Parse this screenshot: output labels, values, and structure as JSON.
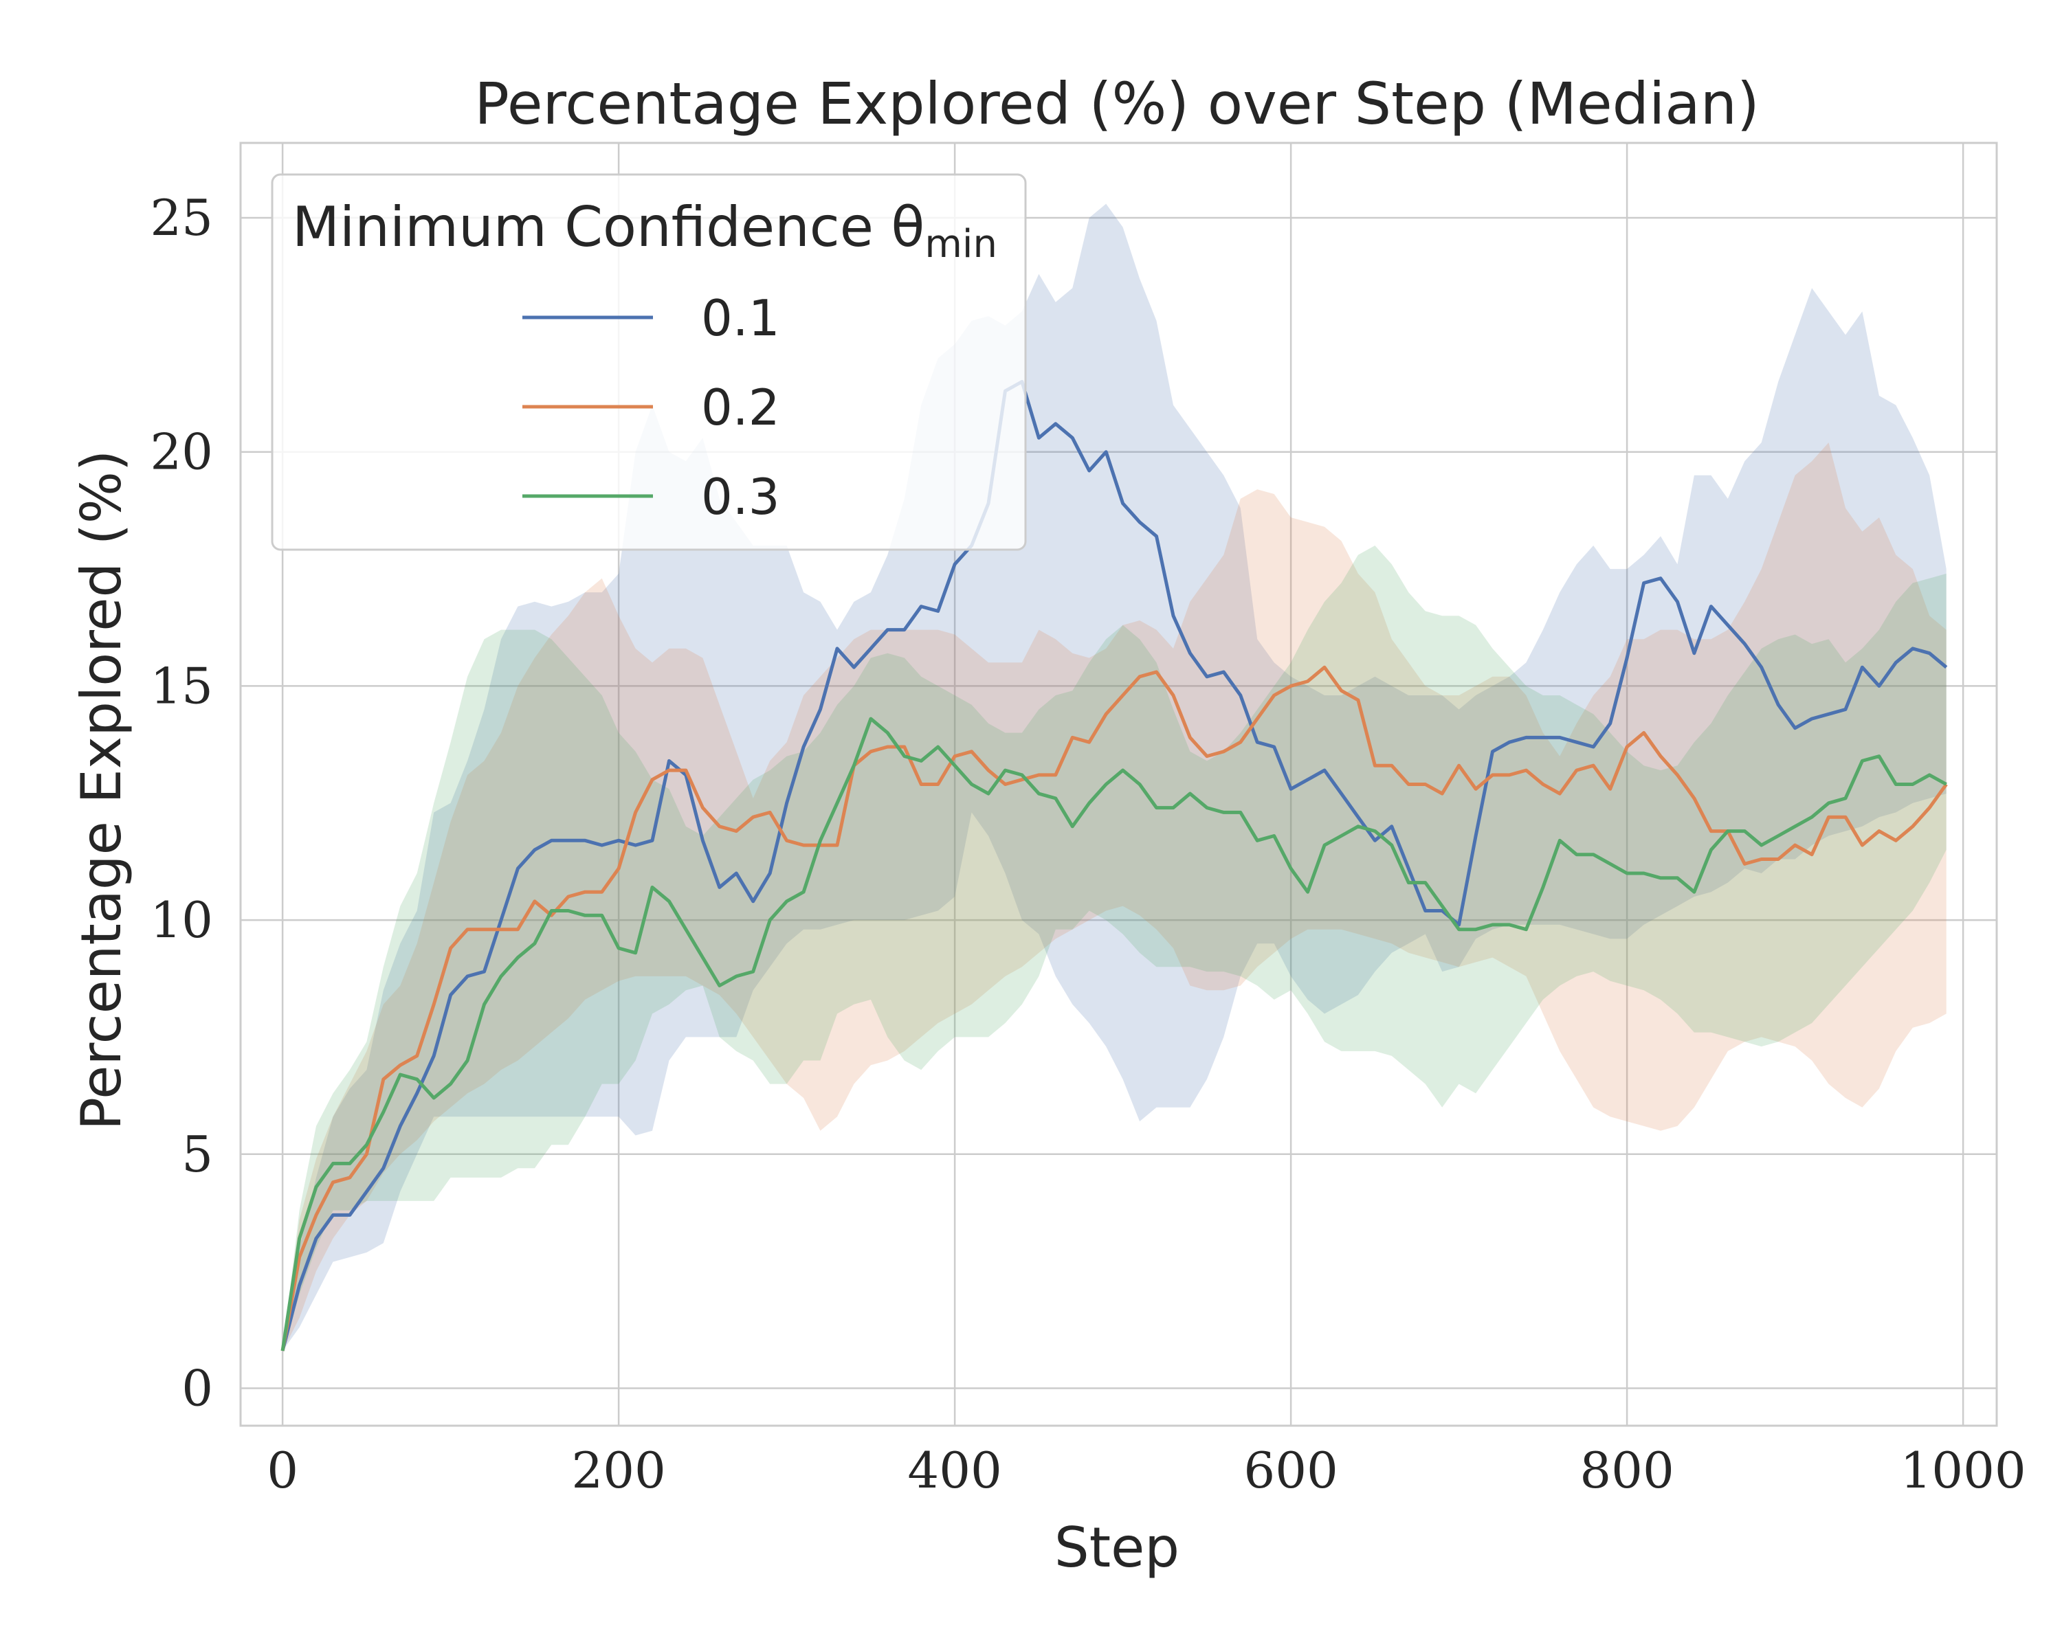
{
  "chart_data": {
    "type": "line",
    "title": "Percentage Explored (%) over Step (Median)",
    "xlabel": "Step",
    "ylabel": "Percentage Explored (%)",
    "xlim": [
      -25,
      1020
    ],
    "ylim": [
      -0.8,
      26.6
    ],
    "xticks": [
      0,
      200,
      400,
      600,
      800,
      1000
    ],
    "yticks": [
      0,
      5,
      10,
      15,
      20,
      25
    ],
    "grid": true,
    "legend": {
      "title": "Minimum Confidence θ",
      "title_subscript": "min",
      "placement": "top-left"
    },
    "series": [
      {
        "name": "0.1",
        "color": "#4c72b0",
        "x": [
          0,
          10,
          20,
          30,
          40,
          50,
          60,
          70,
          80,
          90,
          100,
          110,
          120,
          130,
          140,
          150,
          160,
          170,
          180,
          190,
          200,
          210,
          220,
          230,
          240,
          250,
          260,
          270,
          280,
          290,
          300,
          310,
          320,
          330,
          340,
          350,
          360,
          370,
          380,
          390,
          400,
          410,
          420,
          430,
          440,
          450,
          460,
          470,
          480,
          490,
          500,
          510,
          520,
          530,
          540,
          550,
          560,
          570,
          580,
          590,
          600,
          610,
          620,
          630,
          640,
          650,
          660,
          670,
          680,
          690,
          700,
          710,
          720,
          730,
          740,
          750,
          760,
          770,
          780,
          790,
          800,
          810,
          820,
          830,
          840,
          850,
          860,
          870,
          880,
          890,
          900,
          910,
          920,
          930,
          940,
          950,
          960,
          970,
          980,
          990
        ],
        "values": [
          0.8,
          2.2,
          3.2,
          3.7,
          3.7,
          4.2,
          4.7,
          5.6,
          6.3,
          7.1,
          8.4,
          8.8,
          8.9,
          10.0,
          11.1,
          11.5,
          11.7,
          11.7,
          11.7,
          11.6,
          11.7,
          11.6,
          11.7,
          13.4,
          13.1,
          11.7,
          10.7,
          11.0,
          10.4,
          11.0,
          12.5,
          13.7,
          14.5,
          15.8,
          15.4,
          15.8,
          16.2,
          16.2,
          16.7,
          16.6,
          17.6,
          18.0,
          18.9,
          21.3,
          21.5,
          20.3,
          20.6,
          20.3,
          19.6,
          20.0,
          18.9,
          18.5,
          18.2,
          16.5,
          15.7,
          15.2,
          15.3,
          14.8,
          13.8,
          13.7,
          12.8,
          13.0,
          13.2,
          12.7,
          12.2,
          11.7,
          12.0,
          11.1,
          10.2,
          10.2,
          9.9,
          11.8,
          13.6,
          13.8,
          13.9,
          13.9,
          13.9,
          13.8,
          13.7,
          14.2,
          15.6,
          17.2,
          17.3,
          16.8,
          15.7,
          16.7,
          16.3,
          15.9,
          15.4,
          14.6,
          14.1,
          14.3,
          14.4,
          14.5,
          15.4,
          15.0,
          15.5,
          15.8,
          15.7,
          15.4
        ],
        "lower": [
          0.8,
          1.3,
          2.0,
          2.7,
          2.8,
          2.9,
          3.1,
          4.2,
          5.0,
          5.8,
          5.8,
          5.8,
          5.8,
          5.8,
          5.8,
          5.8,
          5.8,
          5.8,
          5.8,
          5.8,
          5.8,
          5.4,
          5.5,
          7.0,
          7.5,
          7.5,
          7.5,
          7.5,
          8.5,
          9.0,
          9.5,
          9.8,
          9.8,
          9.9,
          10.0,
          10.0,
          10.0,
          10.0,
          10.1,
          10.2,
          10.5,
          12.3,
          11.8,
          11.0,
          10.0,
          9.7,
          8.8,
          8.2,
          7.8,
          7.3,
          6.6,
          5.7,
          6.0,
          6.0,
          6.0,
          6.6,
          7.5,
          8.8,
          9.5,
          9.5,
          8.8,
          8.3,
          8.0,
          8.2,
          8.4,
          8.9,
          9.3,
          9.5,
          9.7,
          8.9,
          9.0,
          9.6,
          9.8,
          9.9,
          9.9,
          9.9,
          9.9,
          9.8,
          9.7,
          9.6,
          9.6,
          9.9,
          10.1,
          10.3,
          10.5,
          10.6,
          10.8,
          11.1,
          11.0,
          11.3,
          11.3,
          11.6,
          11.8,
          11.9,
          12.0,
          12.2,
          12.3,
          12.5,
          12.6,
          12.7
        ],
        "upper": [
          0.8,
          3.0,
          4.5,
          5.8,
          6.4,
          6.8,
          8.5,
          9.5,
          10.2,
          12.3,
          12.5,
          13.4,
          14.5,
          16.0,
          16.7,
          16.8,
          16.7,
          16.8,
          17.0,
          17.0,
          17.4,
          20.0,
          21.0,
          20.0,
          19.8,
          20.3,
          19.0,
          18.5,
          18.0,
          18.0,
          18.0,
          17.0,
          16.8,
          16.2,
          16.8,
          17.0,
          17.8,
          19.0,
          21.0,
          22.0,
          22.3,
          22.8,
          22.9,
          22.7,
          23.0,
          23.8,
          23.2,
          23.5,
          25.0,
          25.3,
          24.8,
          23.7,
          22.8,
          21.0,
          20.5,
          20.0,
          19.5,
          18.8,
          16.0,
          15.5,
          15.2,
          15.0,
          14.8,
          14.8,
          15.0,
          15.2,
          15.0,
          14.8,
          14.8,
          14.8,
          14.5,
          14.8,
          15.0,
          15.2,
          15.5,
          16.2,
          17.0,
          17.6,
          18.0,
          17.5,
          17.5,
          17.8,
          18.2,
          17.6,
          19.5,
          19.5,
          19.0,
          19.8,
          20.2,
          21.5,
          22.5,
          23.5,
          23.0,
          22.5,
          23.0,
          21.2,
          21.0,
          20.3,
          19.5,
          17.5
        ]
      },
      {
        "name": "0.2",
        "color": "#dd8452",
        "x": [
          0,
          10,
          20,
          30,
          40,
          50,
          60,
          70,
          80,
          90,
          100,
          110,
          120,
          130,
          140,
          150,
          160,
          170,
          180,
          190,
          200,
          210,
          220,
          230,
          240,
          250,
          260,
          270,
          280,
          290,
          300,
          310,
          320,
          330,
          340,
          350,
          360,
          370,
          380,
          390,
          400,
          410,
          420,
          430,
          440,
          450,
          460,
          470,
          480,
          490,
          500,
          510,
          520,
          530,
          540,
          550,
          560,
          570,
          580,
          590,
          600,
          610,
          620,
          630,
          640,
          650,
          660,
          670,
          680,
          690,
          700,
          710,
          720,
          730,
          740,
          750,
          760,
          770,
          780,
          790,
          800,
          810,
          820,
          830,
          840,
          850,
          860,
          870,
          880,
          890,
          900,
          910,
          920,
          930,
          940,
          950,
          960,
          970,
          980,
          990
        ],
        "values": [
          0.8,
          2.8,
          3.7,
          4.4,
          4.5,
          5.0,
          6.6,
          6.9,
          7.1,
          8.2,
          9.4,
          9.8,
          9.8,
          9.8,
          9.8,
          10.4,
          10.1,
          10.5,
          10.6,
          10.6,
          11.1,
          12.3,
          13.0,
          13.2,
          13.2,
          12.4,
          12.0,
          11.9,
          12.2,
          12.3,
          11.7,
          11.6,
          11.6,
          11.6,
          13.3,
          13.6,
          13.7,
          13.7,
          12.9,
          12.9,
          13.5,
          13.6,
          13.2,
          12.9,
          13.0,
          13.1,
          13.1,
          13.9,
          13.8,
          14.4,
          14.8,
          15.2,
          15.3,
          14.8,
          13.9,
          13.5,
          13.6,
          13.8,
          14.3,
          14.8,
          15.0,
          15.1,
          15.4,
          14.9,
          14.7,
          13.3,
          13.3,
          12.9,
          12.9,
          12.7,
          13.3,
          12.8,
          13.1,
          13.1,
          13.2,
          12.9,
          12.7,
          13.2,
          13.3,
          12.8,
          13.7,
          14.0,
          13.5,
          13.1,
          12.6,
          11.9,
          11.9,
          11.2,
          11.3,
          11.3,
          11.6,
          11.4,
          12.2,
          12.2,
          11.6,
          11.9,
          11.7,
          12.0,
          12.4,
          12.9
        ],
        "lower": [
          0.8,
          1.5,
          2.5,
          3.2,
          3.7,
          4.0,
          4.6,
          5.0,
          5.3,
          5.7,
          6.0,
          6.3,
          6.5,
          6.8,
          7.0,
          7.3,
          7.6,
          7.9,
          8.3,
          8.5,
          8.7,
          8.8,
          8.8,
          8.8,
          8.8,
          8.6,
          8.4,
          8.0,
          7.5,
          7.0,
          6.5,
          6.2,
          5.5,
          5.8,
          6.5,
          6.9,
          7.0,
          7.2,
          7.5,
          7.8,
          8.0,
          8.2,
          8.5,
          8.8,
          9.0,
          9.3,
          9.6,
          9.8,
          10.0,
          10.2,
          10.3,
          10.1,
          9.8,
          9.4,
          8.6,
          8.5,
          8.5,
          8.6,
          9.0,
          9.3,
          9.6,
          9.8,
          9.8,
          9.8,
          9.7,
          9.6,
          9.5,
          9.3,
          9.2,
          9.1,
          9.0,
          9.1,
          9.2,
          9.0,
          8.8,
          8.0,
          7.2,
          6.6,
          6.0,
          5.8,
          5.7,
          5.6,
          5.5,
          5.6,
          6.0,
          6.6,
          7.2,
          7.4,
          7.5,
          7.4,
          7.3,
          7.0,
          6.5,
          6.2,
          6.0,
          6.4,
          7.2,
          7.7,
          7.8,
          8.0
        ],
        "upper": [
          0.8,
          3.6,
          4.9,
          5.8,
          6.5,
          7.2,
          8.2,
          8.6,
          9.5,
          10.8,
          12.1,
          13.1,
          13.4,
          14.0,
          15.0,
          15.6,
          16.1,
          16.5,
          17.0,
          17.3,
          16.5,
          15.8,
          15.5,
          15.8,
          15.8,
          15.6,
          14.6,
          13.6,
          12.6,
          13.4,
          13.8,
          14.8,
          15.2,
          15.6,
          16.0,
          16.2,
          16.2,
          16.2,
          16.2,
          16.2,
          16.1,
          15.8,
          15.5,
          15.5,
          15.5,
          16.2,
          16.0,
          15.7,
          15.6,
          15.8,
          16.3,
          16.4,
          16.2,
          15.8,
          16.8,
          17.3,
          17.8,
          19.0,
          19.2,
          19.1,
          18.6,
          18.5,
          18.4,
          18.1,
          17.4,
          17.0,
          16.0,
          15.5,
          15.0,
          14.8,
          14.8,
          15.0,
          15.2,
          15.2,
          14.8,
          14.0,
          13.5,
          14.2,
          14.8,
          15.2,
          16.0,
          16.0,
          16.2,
          16.2,
          16.0,
          16.0,
          16.2,
          16.8,
          17.5,
          18.5,
          19.5,
          19.8,
          20.2,
          18.8,
          18.3,
          18.6,
          17.8,
          17.5,
          16.5,
          16.2
        ]
      },
      {
        "name": "0.3",
        "color": "#55a868",
        "x": [
          0,
          10,
          20,
          30,
          40,
          50,
          60,
          70,
          80,
          90,
          100,
          110,
          120,
          130,
          140,
          150,
          160,
          170,
          180,
          190,
          200,
          210,
          220,
          230,
          240,
          250,
          260,
          270,
          280,
          290,
          300,
          310,
          320,
          330,
          340,
          350,
          360,
          370,
          380,
          390,
          400,
          410,
          420,
          430,
          440,
          450,
          460,
          470,
          480,
          490,
          500,
          510,
          520,
          530,
          540,
          550,
          560,
          570,
          580,
          590,
          600,
          610,
          620,
          630,
          640,
          650,
          660,
          670,
          680,
          690,
          700,
          710,
          720,
          730,
          740,
          750,
          760,
          770,
          780,
          790,
          800,
          810,
          820,
          830,
          840,
          850,
          860,
          870,
          880,
          890,
          900,
          910,
          920,
          930,
          940,
          950,
          960,
          970,
          980,
          990
        ],
        "values": [
          0.8,
          3.2,
          4.3,
          4.8,
          4.8,
          5.2,
          5.9,
          6.7,
          6.6,
          6.2,
          6.5,
          7.0,
          8.2,
          8.8,
          9.2,
          9.5,
          10.2,
          10.2,
          10.1,
          10.1,
          9.4,
          9.3,
          10.7,
          10.4,
          9.8,
          9.2,
          8.6,
          8.8,
          8.9,
          10.0,
          10.4,
          10.6,
          11.7,
          12.5,
          13.3,
          14.3,
          14.0,
          13.5,
          13.4,
          13.7,
          13.3,
          12.9,
          12.7,
          13.2,
          13.1,
          12.7,
          12.6,
          12.0,
          12.5,
          12.9,
          13.2,
          12.9,
          12.4,
          12.4,
          12.7,
          12.4,
          12.3,
          12.3,
          11.7,
          11.8,
          11.1,
          10.6,
          11.6,
          11.8,
          12.0,
          11.9,
          11.6,
          10.8,
          10.8,
          10.3,
          9.8,
          9.8,
          9.9,
          9.9,
          9.8,
          10.7,
          11.7,
          11.4,
          11.4,
          11.2,
          11.0,
          11.0,
          10.9,
          10.9,
          10.6,
          11.5,
          11.9,
          11.9,
          11.6,
          11.8,
          12.0,
          12.2,
          12.5,
          12.6,
          13.4,
          13.5,
          12.9,
          12.9,
          13.1,
          12.9
        ],
        "lower": [
          0.8,
          2.0,
          3.0,
          3.8,
          3.8,
          4.0,
          4.0,
          4.0,
          4.0,
          4.0,
          4.5,
          4.5,
          4.5,
          4.5,
          4.7,
          4.7,
          5.2,
          5.2,
          5.8,
          6.5,
          6.5,
          7.0,
          8.0,
          8.2,
          8.5,
          8.6,
          7.5,
          7.2,
          7.0,
          6.5,
          6.5,
          7.0,
          7.0,
          8.0,
          8.2,
          8.3,
          7.5,
          7.0,
          6.8,
          7.2,
          7.5,
          7.5,
          7.5,
          7.8,
          8.2,
          8.8,
          9.8,
          9.8,
          10.2,
          10.0,
          9.7,
          9.3,
          9.0,
          9.0,
          9.0,
          8.9,
          8.9,
          8.8,
          8.6,
          8.3,
          8.5,
          8.0,
          7.4,
          7.2,
          7.2,
          7.2,
          7.1,
          6.8,
          6.5,
          6.0,
          6.5,
          6.3,
          6.8,
          7.3,
          7.8,
          8.3,
          8.6,
          8.8,
          8.9,
          8.7,
          8.6,
          8.5,
          8.3,
          8.0,
          7.6,
          7.6,
          7.5,
          7.4,
          7.3,
          7.4,
          7.6,
          7.8,
          8.2,
          8.6,
          9.0,
          9.4,
          9.8,
          10.2,
          10.8,
          11.5
        ],
        "upper": [
          0.8,
          3.8,
          5.6,
          6.3,
          6.8,
          7.4,
          9.0,
          10.3,
          11.0,
          12.5,
          13.8,
          15.2,
          16.0,
          16.2,
          16.2,
          16.2,
          16.0,
          15.6,
          15.2,
          14.8,
          14.0,
          13.6,
          13.0,
          12.8,
          12.0,
          11.8,
          12.2,
          12.6,
          13.0,
          13.2,
          13.5,
          13.6,
          14.0,
          14.6,
          15.0,
          15.6,
          15.7,
          15.6,
          15.2,
          15.0,
          14.8,
          14.6,
          14.2,
          14.0,
          14.0,
          14.5,
          14.8,
          14.9,
          15.5,
          16.0,
          16.3,
          16.0,
          15.5,
          14.5,
          13.6,
          13.4,
          13.6,
          14.0,
          14.5,
          15.0,
          15.5,
          16.2,
          16.8,
          17.2,
          17.8,
          18.0,
          17.6,
          17.0,
          16.6,
          16.5,
          16.5,
          16.3,
          15.8,
          15.4,
          15.0,
          14.8,
          14.8,
          14.6,
          14.4,
          14.0,
          13.6,
          13.3,
          13.2,
          13.3,
          13.8,
          14.2,
          14.8,
          15.3,
          15.8,
          16.0,
          16.1,
          15.9,
          16.0,
          15.5,
          15.8,
          16.2,
          16.8,
          17.2,
          17.3,
          17.4
        ]
      }
    ]
  }
}
